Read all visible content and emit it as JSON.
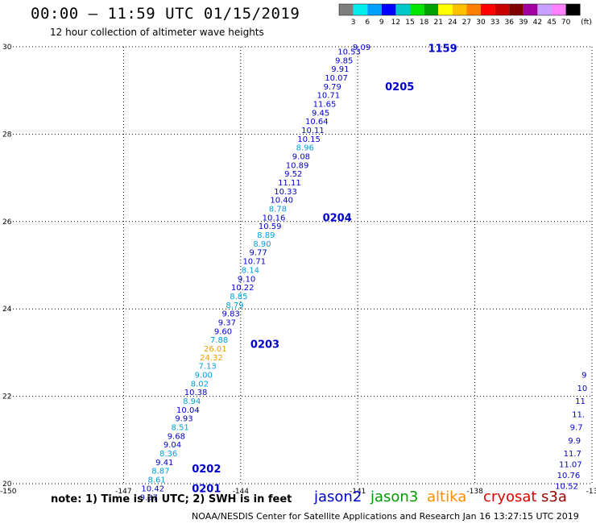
{
  "header": {
    "title": "00:00 – 11:59 UTC 01/15/2019",
    "subtitle": "12 hour collection of altimeter wave heights"
  },
  "colorbar": {
    "colors": [
      "#7f7f7f",
      "#00eeee",
      "#00a0ff",
      "#0000ff",
      "#00c8c8",
      "#00e600",
      "#00a000",
      "#ffff00",
      "#ffc000",
      "#ff8000",
      "#ff0000",
      "#c80000",
      "#800000",
      "#a000a0",
      "#c8a0ff",
      "#ff80ff",
      "#000000"
    ],
    "labels": [
      "3",
      "6",
      "9",
      "12",
      "15",
      "18",
      "21",
      "24",
      "27",
      "30",
      "33",
      "36",
      "39",
      "42",
      "45",
      "70"
    ],
    "unit": "(ft)"
  },
  "axes": {
    "lon_ticks": [
      "-150",
      "-147",
      "-144",
      "-141",
      "-138",
      "-13"
    ],
    "lat_ticks": [
      "30",
      "28",
      "26",
      "24",
      "22",
      "20"
    ],
    "lon_range": [
      -150,
      -135
    ],
    "lat_range": [
      20,
      30
    ],
    "grid": true
  },
  "colors": {
    "jason2": "#0000cc",
    "jason3": "#009900",
    "altika": "#ff8c00",
    "cryosat": "#dd0000",
    "s3a": "#990000",
    "cyan_obs": "#00a0e0",
    "orange_obs": "#e6a000"
  },
  "track_obs": [
    {
      "lon": -141.22,
      "lat": 29.9,
      "v": "10.53",
      "c": "jason2"
    },
    {
      "lon": -141.35,
      "lat": 29.7,
      "v": "9.85",
      "c": "jason2"
    },
    {
      "lon": -141.45,
      "lat": 29.5,
      "v": "9.91",
      "c": "jason2"
    },
    {
      "lon": -141.55,
      "lat": 29.3,
      "v": "10.07",
      "c": "jason2"
    },
    {
      "lon": -141.65,
      "lat": 29.1,
      "v": "9.79",
      "c": "jason2"
    },
    {
      "lon": -141.75,
      "lat": 28.9,
      "v": "10.71",
      "c": "jason2"
    },
    {
      "lon": -141.85,
      "lat": 28.7,
      "v": "11.65",
      "c": "jason2"
    },
    {
      "lon": -141.95,
      "lat": 28.5,
      "v": "9.45",
      "c": "jason2"
    },
    {
      "lon": -142.05,
      "lat": 28.3,
      "v": "10.64",
      "c": "jason2"
    },
    {
      "lon": -142.15,
      "lat": 28.1,
      "v": "10.11",
      "c": "jason2"
    },
    {
      "lon": -142.25,
      "lat": 27.9,
      "v": "10.15",
      "c": "jason2"
    },
    {
      "lon": -142.35,
      "lat": 27.7,
      "v": "8.96",
      "c": "cyan_obs"
    },
    {
      "lon": -142.45,
      "lat": 27.5,
      "v": "9.08",
      "c": "jason2"
    },
    {
      "lon": -142.55,
      "lat": 27.3,
      "v": "10.89",
      "c": "jason2"
    },
    {
      "lon": -142.65,
      "lat": 27.1,
      "v": "9.52",
      "c": "jason2"
    },
    {
      "lon": -142.75,
      "lat": 26.9,
      "v": "11.11",
      "c": "jason2"
    },
    {
      "lon": -142.85,
      "lat": 26.7,
      "v": "10.33",
      "c": "jason2"
    },
    {
      "lon": -142.95,
      "lat": 26.5,
      "v": "10.40",
      "c": "jason2"
    },
    {
      "lon": -143.05,
      "lat": 26.3,
      "v": "8.78",
      "c": "cyan_obs"
    },
    {
      "lon": -143.15,
      "lat": 26.1,
      "v": "10.16",
      "c": "jason2"
    },
    {
      "lon": -143.25,
      "lat": 25.9,
      "v": "10.59",
      "c": "jason2"
    },
    {
      "lon": -143.35,
      "lat": 25.7,
      "v": "8.89",
      "c": "cyan_obs"
    },
    {
      "lon": -143.45,
      "lat": 25.5,
      "v": "8.90",
      "c": "cyan_obs"
    },
    {
      "lon": -143.55,
      "lat": 25.3,
      "v": "9.77",
      "c": "jason2"
    },
    {
      "lon": -143.65,
      "lat": 25.1,
      "v": "10.71",
      "c": "jason2"
    },
    {
      "lon": -143.75,
      "lat": 24.9,
      "v": "8.14",
      "c": "cyan_obs"
    },
    {
      "lon": -143.85,
      "lat": 24.7,
      "v": "9.10",
      "c": "jason2"
    },
    {
      "lon": -143.95,
      "lat": 24.5,
      "v": "10.22",
      "c": "jason2"
    },
    {
      "lon": -144.05,
      "lat": 24.3,
      "v": "8.85",
      "c": "cyan_obs"
    },
    {
      "lon": -144.15,
      "lat": 24.1,
      "v": "8.79",
      "c": "cyan_obs"
    },
    {
      "lon": -144.25,
      "lat": 23.9,
      "v": "9.83",
      "c": "jason2"
    },
    {
      "lon": -144.35,
      "lat": 23.7,
      "v": "9.37",
      "c": "jason2"
    },
    {
      "lon": -144.45,
      "lat": 23.5,
      "v": "9.60",
      "c": "jason2"
    },
    {
      "lon": -144.55,
      "lat": 23.3,
      "v": "7.88",
      "c": "cyan_obs"
    },
    {
      "lon": -144.65,
      "lat": 23.1,
      "v": "26.01",
      "c": "orange_obs"
    },
    {
      "lon": -144.75,
      "lat": 22.9,
      "v": "24.32",
      "c": "orange_obs"
    },
    {
      "lon": -144.85,
      "lat": 22.7,
      "v": "7.13",
      "c": "cyan_obs"
    },
    {
      "lon": -144.95,
      "lat": 22.5,
      "v": "9.00",
      "c": "cyan_obs"
    },
    {
      "lon": -145.05,
      "lat": 22.3,
      "v": "8.02",
      "c": "cyan_obs"
    },
    {
      "lon": -145.15,
      "lat": 22.1,
      "v": "10.38",
      "c": "jason2"
    },
    {
      "lon": -145.25,
      "lat": 21.9,
      "v": "8.94",
      "c": "cyan_obs"
    },
    {
      "lon": -145.35,
      "lat": 21.7,
      "v": "10.04",
      "c": "jason2"
    },
    {
      "lon": -145.45,
      "lat": 21.5,
      "v": "9.93",
      "c": "jason2"
    },
    {
      "lon": -145.55,
      "lat": 21.3,
      "v": "8.51",
      "c": "cyan_obs"
    },
    {
      "lon": -145.65,
      "lat": 21.1,
      "v": "9.68",
      "c": "jason2"
    },
    {
      "lon": -145.75,
      "lat": 20.9,
      "v": "9.04",
      "c": "jason2"
    },
    {
      "lon": -145.85,
      "lat": 20.7,
      "v": "8.36",
      "c": "cyan_obs"
    },
    {
      "lon": -145.95,
      "lat": 20.5,
      "v": "9.41",
      "c": "jason2"
    },
    {
      "lon": -146.05,
      "lat": 20.3,
      "v": "8.87",
      "c": "cyan_obs"
    },
    {
      "lon": -146.15,
      "lat": 20.1,
      "v": "8.61",
      "c": "cyan_obs"
    },
    {
      "lon": -146.25,
      "lat": 19.9,
      "v": "10.42",
      "c": "jason2"
    },
    {
      "lon": -146.35,
      "lat": 19.7,
      "v": "9.37",
      "c": "jason2"
    },
    {
      "lon": -140.9,
      "lat": 30.0,
      "v": "9.09",
      "c": "jason2"
    },
    {
      "lon": -135.2,
      "lat": 22.5,
      "v": "9",
      "c": "jason2"
    },
    {
      "lon": -135.25,
      "lat": 22.2,
      "v": "10",
      "c": "jason2"
    },
    {
      "lon": -135.3,
      "lat": 21.9,
      "v": "11",
      "c": "jason2"
    },
    {
      "lon": -135.35,
      "lat": 21.6,
      "v": "11.",
      "c": "jason2"
    },
    {
      "lon": -135.4,
      "lat": 21.3,
      "v": "9.7",
      "c": "jason2"
    },
    {
      "lon": -135.45,
      "lat": 21.0,
      "v": "9.9",
      "c": "jason2"
    },
    {
      "lon": -135.5,
      "lat": 20.7,
      "v": "11.7",
      "c": "jason2"
    },
    {
      "lon": -135.55,
      "lat": 20.45,
      "v": "11.07",
      "c": "jason2"
    },
    {
      "lon": -135.6,
      "lat": 20.2,
      "v": "10.76",
      "c": "jason2"
    },
    {
      "lon": -135.65,
      "lat": 19.95,
      "v": "10.52",
      "c": "jason2"
    }
  ],
  "time_labels": [
    {
      "lon": -139.2,
      "lat": 29.97,
      "v": "1159"
    },
    {
      "lon": -140.3,
      "lat": 29.1,
      "v": "0205"
    },
    {
      "lon": -141.9,
      "lat": 26.1,
      "v": "0204"
    },
    {
      "lon": -143.75,
      "lat": 23.2,
      "v": "0203"
    },
    {
      "lon": -145.25,
      "lat": 20.35,
      "v": "0202"
    },
    {
      "lon": -145.25,
      "lat": 19.9,
      "v": "0201"
    }
  ],
  "footer": {
    "note": "note: 1) Time is in UTC; 2) SWH is in feet",
    "legend": [
      {
        "name": "jason2",
        "key": "jason2"
      },
      {
        "name": "jason3",
        "key": "jason3"
      },
      {
        "name": "altika",
        "key": "altika"
      },
      {
        "name": "cryosat",
        "key": "cryosat"
      },
      {
        "name": "s3a",
        "key": "s3a"
      }
    ],
    "credit": "NOAA/NESDIS Center for Satellite Applications and Research    Jan 16 13:27:15 UTC 2019"
  }
}
